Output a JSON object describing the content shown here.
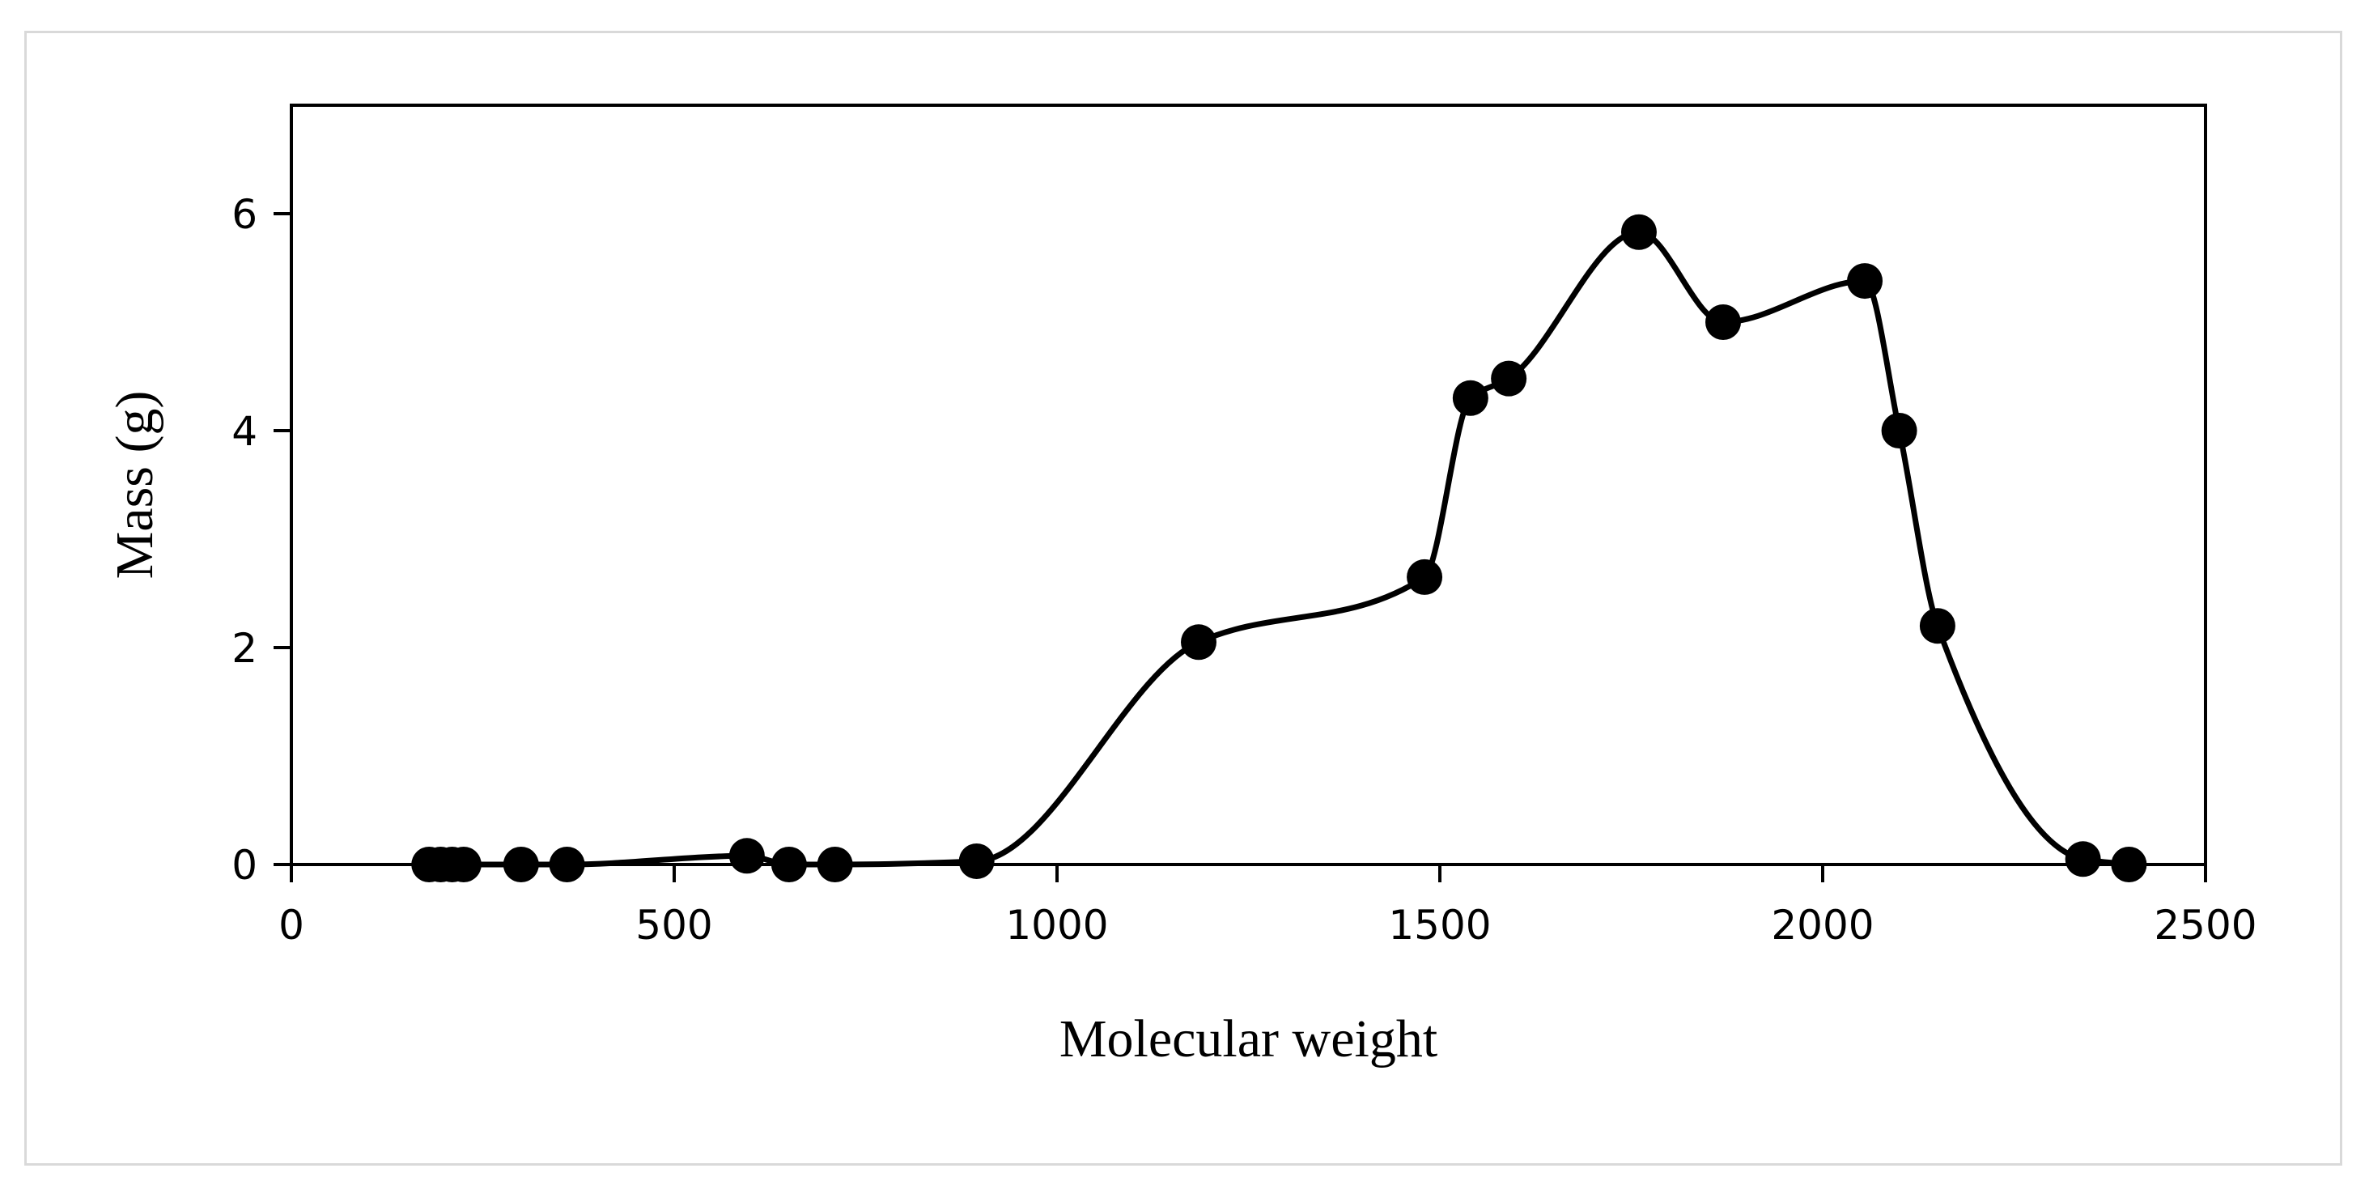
{
  "chart_data": {
    "type": "line",
    "title": "",
    "xlabel": "Molecular weight",
    "ylabel": "Mass (g)",
    "xlim": [
      0,
      2500
    ],
    "ylim": [
      0,
      7
    ],
    "x_ticks": [
      0,
      500,
      1000,
      1500,
      2000,
      2500
    ],
    "y_ticks": [
      0,
      2,
      4,
      6
    ],
    "grid": false,
    "legend": "none",
    "smooth": true,
    "line_color": "#000000",
    "marker_color": "#000000",
    "series": [
      {
        "x": [
          180,
          195,
          210,
          225,
          300,
          360,
          595,
          650,
          710,
          895,
          1185,
          1480,
          1540,
          1590,
          1760,
          1870,
          2055,
          2100,
          2150,
          2340,
          2400
        ],
        "y": [
          0.0,
          0.0,
          0.0,
          0.0,
          0.0,
          0.0,
          0.08,
          0.0,
          0.0,
          0.03,
          2.05,
          2.65,
          4.3,
          4.48,
          5.83,
          5.0,
          5.38,
          4.0,
          2.2,
          0.05,
          0.0
        ]
      }
    ]
  }
}
